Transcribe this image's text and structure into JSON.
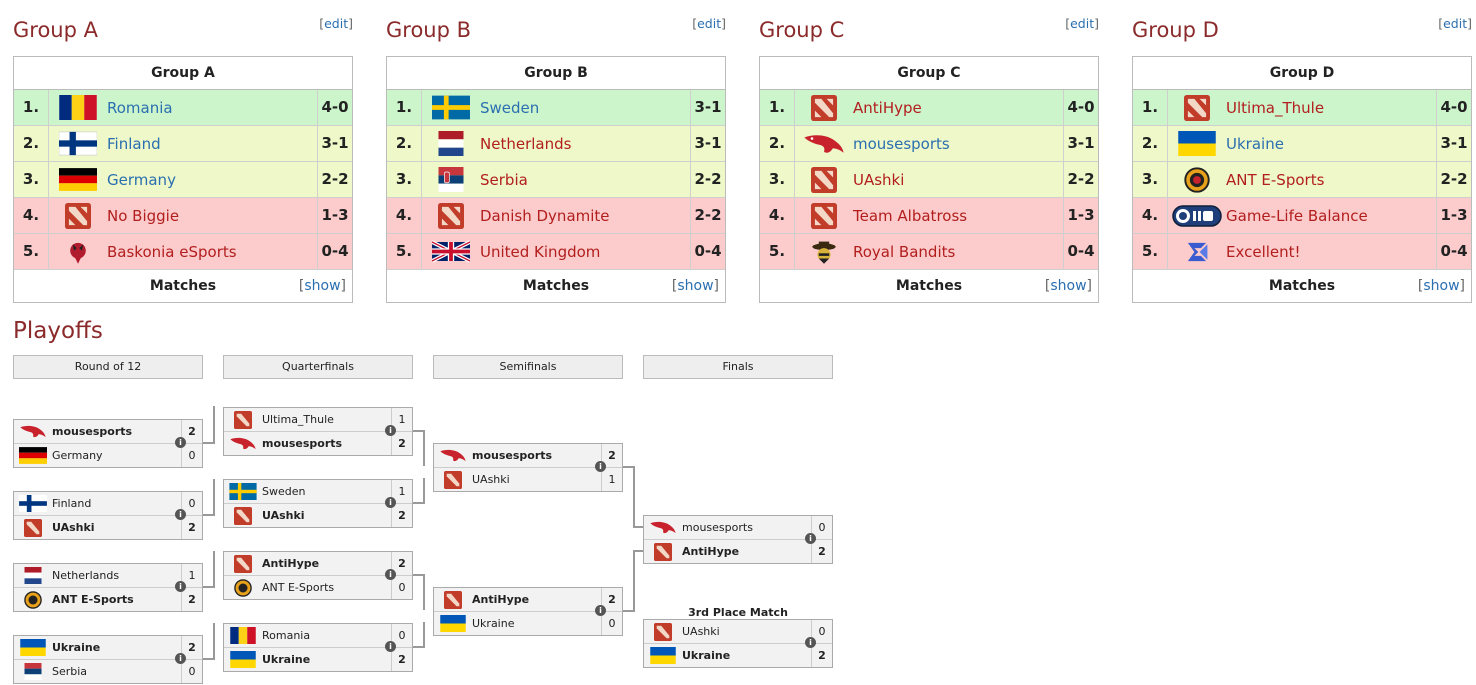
{
  "groups": [
    {
      "title": "Group A",
      "edit": "edit",
      "table_title": "Group A",
      "footer": "Matches",
      "show": "show",
      "rows": [
        {
          "pos": "1.",
          "name": "Romania",
          "score": "4-0"
        },
        {
          "pos": "2.",
          "name": "Finland",
          "score": "3-1"
        },
        {
          "pos": "3.",
          "name": "Germany",
          "score": "2-2"
        },
        {
          "pos": "4.",
          "name": "No Biggie",
          "score": "1-3"
        },
        {
          "pos": "5.",
          "name": "Baskonia eSports",
          "score": "0-4"
        }
      ]
    },
    {
      "title": "Group B",
      "edit": "edit",
      "table_title": "Group B",
      "footer": "Matches",
      "show": "show",
      "rows": [
        {
          "pos": "1.",
          "name": "Sweden",
          "score": "3-1"
        },
        {
          "pos": "2.",
          "name": "Netherlands",
          "score": "3-1"
        },
        {
          "pos": "3.",
          "name": "Serbia",
          "score": "2-2"
        },
        {
          "pos": "4.",
          "name": "Danish Dynamite",
          "score": "2-2"
        },
        {
          "pos": "5.",
          "name": "United Kingdom",
          "score": "0-4"
        }
      ]
    },
    {
      "title": "Group C",
      "edit": "edit",
      "table_title": "Group C",
      "footer": "Matches",
      "show": "show",
      "rows": [
        {
          "pos": "1.",
          "name": "AntiHype",
          "score": "4-0"
        },
        {
          "pos": "2.",
          "name": "mousesports",
          "score": "3-1"
        },
        {
          "pos": "3.",
          "name": "UAshki",
          "score": "2-2"
        },
        {
          "pos": "4.",
          "name": "Team Albatross",
          "score": "1-3"
        },
        {
          "pos": "5.",
          "name": "Royal Bandits",
          "score": "0-4"
        }
      ]
    },
    {
      "title": "Group D",
      "edit": "edit",
      "table_title": "Group D",
      "footer": "Matches",
      "show": "show",
      "rows": [
        {
          "pos": "1.",
          "name": "Ultima_Thule",
          "score": "4-0"
        },
        {
          "pos": "2.",
          "name": "Ukraine",
          "score": "3-1"
        },
        {
          "pos": "3.",
          "name": "ANT E-Sports",
          "score": "2-2"
        },
        {
          "pos": "4.",
          "name": "Game-Life Balance",
          "score": "1-3"
        },
        {
          "pos": "5.",
          "name": "Excellent!",
          "score": "0-4"
        }
      ]
    }
  ],
  "playoffs": {
    "title": "Playoffs",
    "rounds": [
      "Round of 12",
      "Quarterfinals",
      "Semifinals",
      "Finals"
    ],
    "third_place_title": "3rd Place Match",
    "matches": [
      {
        "a": "mousesports",
        "as": "2",
        "b": "Germany",
        "bs": "0"
      },
      {
        "a": "Finland",
        "as": "0",
        "b": "UAshki",
        "bs": "2"
      },
      {
        "a": "Netherlands",
        "as": "1",
        "b": "ANT E-Sports",
        "bs": "2"
      },
      {
        "a": "Ukraine",
        "as": "2",
        "b": "Serbia",
        "bs": "0"
      },
      {
        "a": "Ultima_Thule",
        "as": "1",
        "b": "mousesports",
        "bs": "2"
      },
      {
        "a": "Sweden",
        "as": "1",
        "b": "UAshki",
        "bs": "2"
      },
      {
        "a": "AntiHype",
        "as": "2",
        "b": "ANT E-Sports",
        "bs": "0"
      },
      {
        "a": "Romania",
        "as": "0",
        "b": "Ukraine",
        "bs": "2"
      },
      {
        "a": "mousesports",
        "as": "2",
        "b": "UAshki",
        "bs": "1"
      },
      {
        "a": "AntiHype",
        "as": "2",
        "b": "Ukraine",
        "bs": "0"
      },
      {
        "a": "mousesports",
        "as": "0",
        "b": "AntiHype",
        "bs": "2"
      },
      {
        "a": "UAshki",
        "as": "0",
        "b": "Ukraine",
        "bs": "2"
      }
    ]
  },
  "colors": {
    "accent": "#8b2a2a",
    "link": "#2a6fb0",
    "advance": "#ccf5cc",
    "middle": "#eef8c8",
    "eliminated": "#fccccc"
  }
}
